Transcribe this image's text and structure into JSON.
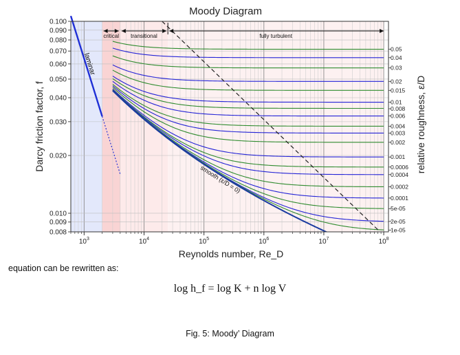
{
  "chart_data": {
    "type": "line",
    "title": "Moody Diagram",
    "xlabel": "Reynolds number, Re_D",
    "ylabel": "Darcy friction factor, f",
    "y2label": "relative roughness, ε/D",
    "xscale": "log",
    "yscale": "log",
    "xlim": [
      600,
      120000000
    ],
    "ylim": [
      0.008,
      0.1
    ],
    "x_ticks": [
      "10^3",
      "10^4",
      "10^5",
      "10^6",
      "10^7",
      "10^8"
    ],
    "y_ticks": [
      "0.008",
      "0.009",
      "0.010",
      "0.020",
      "0.030",
      "0.040",
      "0.050",
      "0.060",
      "0.070",
      "0.080",
      "0.090",
      "0.100"
    ],
    "grid": true,
    "regions": [
      {
        "name": "laminar",
        "x_range": [
          600,
          2000
        ],
        "color": "#e3e8fb"
      },
      {
        "name": "critical",
        "x_range": [
          2000,
          4000
        ],
        "color": "#f9d4d4"
      },
      {
        "name": "transitional",
        "x_range": [
          4000,
          25000
        ],
        "color": "#fdeaea"
      },
      {
        "name": "fully turbulent",
        "x_range": [
          25000,
          100000000
        ],
        "color": "#fdf1f1"
      }
    ],
    "region_labels": [
      "laminar",
      "critical",
      "transitional",
      "fully turbulent"
    ],
    "curve_labels": {
      "laminar": "laminar",
      "smooth": "smooth (ε/D = 0)"
    },
    "laminar_line": {
      "equation": "f = 64/Re",
      "solid_x_range": [
        600,
        2000
      ],
      "dotted_x_range": [
        2000,
        4000
      ],
      "color": "#1f2fd6"
    },
    "turbulent_x_range": [
      3000,
      100000000
    ],
    "relative_roughness": [
      0.05,
      0.04,
      0.03,
      0.02,
      0.015,
      0.01,
      0.008,
      0.006,
      0.004,
      0.003,
      0.002,
      0.001,
      0.0006,
      0.0004,
      0.0002,
      0.0001,
      5e-05,
      2e-05,
      1e-05
    ],
    "relative_roughness_labels": [
      "0.05",
      "0.04",
      "0.03",
      "0.02",
      "0.015",
      "0.01",
      "0.008",
      "0.006",
      "0.004",
      "0.003",
      "0.002",
      "0.001",
      "0.0006",
      "0.0004",
      "0.0002",
      "0.0001",
      "5e-05",
      "2e-05",
      "1e-05"
    ],
    "series_colors": [
      "#2e8b2e",
      "#2323d6"
    ],
    "smooth_curve_color": "#1a3aa0",
    "fully_turbulent_boundary": {
      "style": "dashed",
      "color": "#222222"
    },
    "axis_color": "#333333"
  },
  "text": {
    "paragraph": "equation can be rewritten as:",
    "equation": "log h_f = log K + n log V",
    "caption": "Fig. 5: Moody’ Diagram"
  }
}
